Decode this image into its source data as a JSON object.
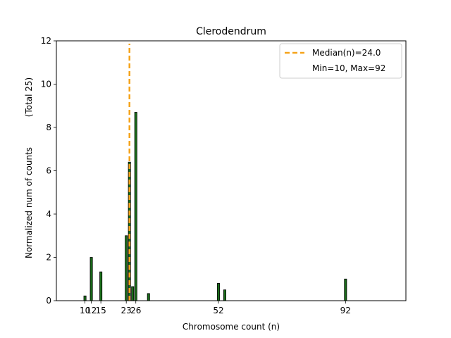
{
  "chart_data": {
    "type": "bar",
    "title": "Clerodendrum",
    "xlabel": "Chromosome count (n)",
    "ylabel": "Normalized num of counts",
    "ylabel_suffix": "(Total 25)",
    "xlim": [
      1,
      111
    ],
    "ylim": [
      0,
      12
    ],
    "yticks": [
      0,
      2,
      4,
      6,
      8,
      10,
      12
    ],
    "xticks": [
      10,
      12,
      15,
      23,
      26,
      52,
      92
    ],
    "xtick_labels": [
      "10",
      "12",
      "15",
      "23",
      "26",
      "52",
      "92"
    ],
    "bars": [
      {
        "x": 10,
        "value": 0.22
      },
      {
        "x": 12,
        "value": 2.0
      },
      {
        "x": 15,
        "value": 1.33
      },
      {
        "x": 23,
        "value": 3.0
      },
      {
        "x": 24,
        "value": 6.4
      },
      {
        "x": 25,
        "value": 0.65
      },
      {
        "x": 26,
        "value": 8.7
      },
      {
        "x": 30,
        "value": 0.33
      },
      {
        "x": 52,
        "value": 0.8
      },
      {
        "x": 54,
        "value": 0.5
      },
      {
        "x": 92,
        "value": 1.0
      }
    ],
    "bar_color": "#1a6e1a",
    "median": {
      "value": 24.0,
      "label": "Median(n)=24.0",
      "color": "#f5a31a"
    },
    "legend": {
      "position": "top-right",
      "entries": [
        "Median(n)=24.0",
        "Min=10, Max=92"
      ]
    }
  }
}
